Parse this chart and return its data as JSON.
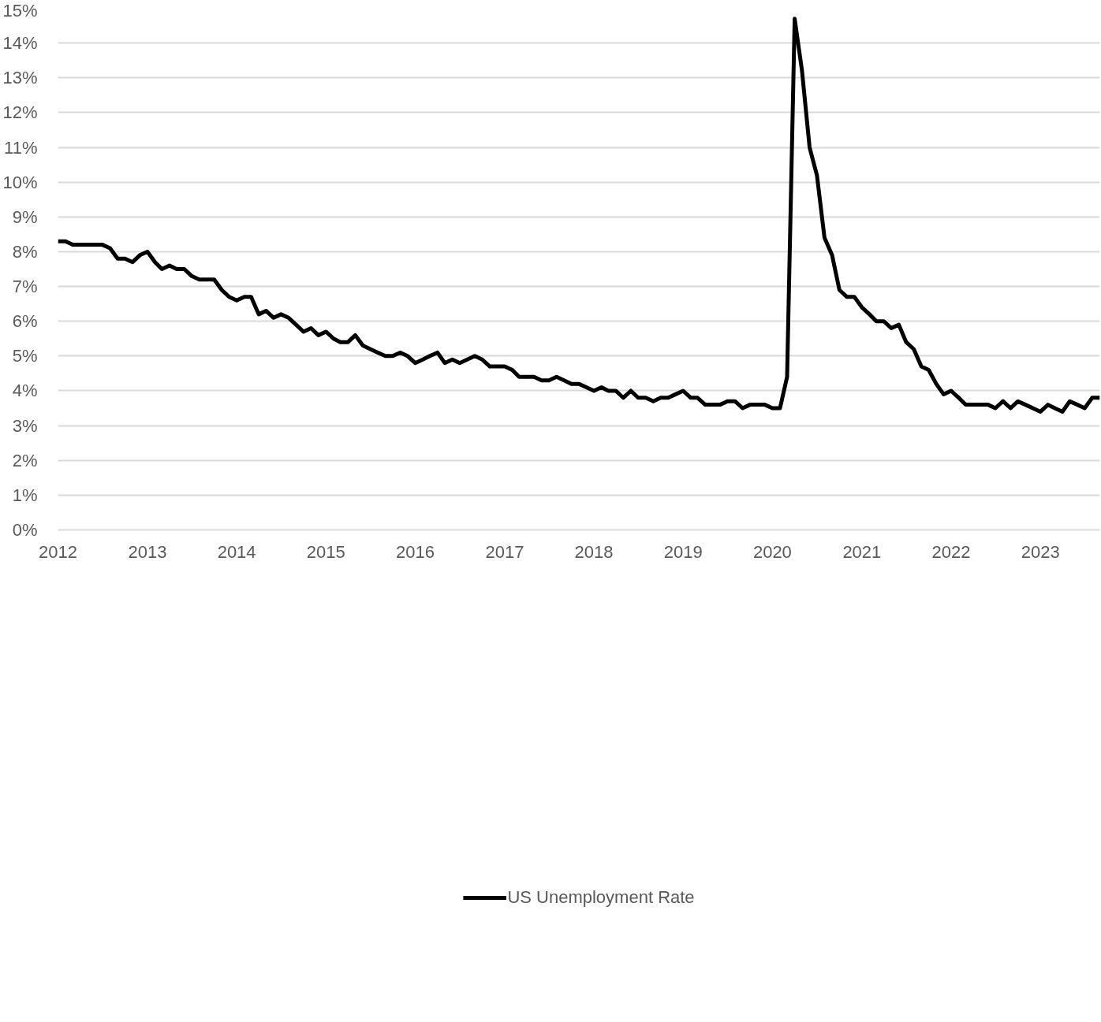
{
  "chart_data": {
    "type": "line",
    "x": [
      "2012-01",
      "2012-02",
      "2012-03",
      "2012-04",
      "2012-05",
      "2012-06",
      "2012-07",
      "2012-08",
      "2012-09",
      "2012-10",
      "2012-11",
      "2012-12",
      "2013-01",
      "2013-02",
      "2013-03",
      "2013-04",
      "2013-05",
      "2013-06",
      "2013-07",
      "2013-08",
      "2013-09",
      "2013-10",
      "2013-11",
      "2013-12",
      "2014-01",
      "2014-02",
      "2014-03",
      "2014-04",
      "2014-05",
      "2014-06",
      "2014-07",
      "2014-08",
      "2014-09",
      "2014-10",
      "2014-11",
      "2014-12",
      "2015-01",
      "2015-02",
      "2015-03",
      "2015-04",
      "2015-05",
      "2015-06",
      "2015-07",
      "2015-08",
      "2015-09",
      "2015-10",
      "2015-11",
      "2015-12",
      "2016-01",
      "2016-02",
      "2016-03",
      "2016-04",
      "2016-05",
      "2016-06",
      "2016-07",
      "2016-08",
      "2016-09",
      "2016-10",
      "2016-11",
      "2016-12",
      "2017-01",
      "2017-02",
      "2017-03",
      "2017-04",
      "2017-05",
      "2017-06",
      "2017-07",
      "2017-08",
      "2017-09",
      "2017-10",
      "2017-11",
      "2017-12",
      "2018-01",
      "2018-02",
      "2018-03",
      "2018-04",
      "2018-05",
      "2018-06",
      "2018-07",
      "2018-08",
      "2018-09",
      "2018-10",
      "2018-11",
      "2018-12",
      "2019-01",
      "2019-02",
      "2019-03",
      "2019-04",
      "2019-05",
      "2019-06",
      "2019-07",
      "2019-08",
      "2019-09",
      "2019-10",
      "2019-11",
      "2019-12",
      "2020-01",
      "2020-02",
      "2020-03",
      "2020-04",
      "2020-05",
      "2020-06",
      "2020-07",
      "2020-08",
      "2020-09",
      "2020-10",
      "2020-11",
      "2020-12",
      "2021-01",
      "2021-02",
      "2021-03",
      "2021-04",
      "2021-05",
      "2021-06",
      "2021-07",
      "2021-08",
      "2021-09",
      "2021-10",
      "2021-11",
      "2021-12",
      "2022-01",
      "2022-02",
      "2022-03",
      "2022-04",
      "2022-05",
      "2022-06",
      "2022-07",
      "2022-08",
      "2022-09",
      "2022-10",
      "2022-11",
      "2022-12",
      "2023-01",
      "2023-02",
      "2023-03",
      "2023-04",
      "2023-05",
      "2023-06",
      "2023-07",
      "2023-08",
      "2023-09"
    ],
    "series": [
      {
        "name": "US Unemployment Rate",
        "color": "#000000",
        "values": [
          8.3,
          8.3,
          8.2,
          8.2,
          8.2,
          8.2,
          8.2,
          8.1,
          7.8,
          7.8,
          7.7,
          7.9,
          8.0,
          7.7,
          7.5,
          7.6,
          7.5,
          7.5,
          7.3,
          7.2,
          7.2,
          7.2,
          6.9,
          6.7,
          6.6,
          6.7,
          6.7,
          6.2,
          6.3,
          6.1,
          6.2,
          6.1,
          5.9,
          5.7,
          5.8,
          5.6,
          5.7,
          5.5,
          5.4,
          5.4,
          5.6,
          5.3,
          5.2,
          5.1,
          5.0,
          5.0,
          5.1,
          5.0,
          4.8,
          4.9,
          5.0,
          5.1,
          4.8,
          4.9,
          4.8,
          4.9,
          5.0,
          4.9,
          4.7,
          4.7,
          4.7,
          4.6,
          4.4,
          4.4,
          4.4,
          4.3,
          4.3,
          4.4,
          4.3,
          4.2,
          4.2,
          4.1,
          4.0,
          4.1,
          4.0,
          4.0,
          3.8,
          4.0,
          3.8,
          3.8,
          3.7,
          3.8,
          3.8,
          3.9,
          4.0,
          3.8,
          3.8,
          3.6,
          3.6,
          3.6,
          3.7,
          3.7,
          3.5,
          3.6,
          3.6,
          3.6,
          3.5,
          3.5,
          4.4,
          14.7,
          13.2,
          11.0,
          10.2,
          8.4,
          7.9,
          6.9,
          6.7,
          6.7,
          6.4,
          6.2,
          6.0,
          6.0,
          5.8,
          5.9,
          5.4,
          5.2,
          4.7,
          4.6,
          4.2,
          3.9,
          4.0,
          3.8,
          3.6,
          3.6,
          3.6,
          3.6,
          3.5,
          3.7,
          3.5,
          3.7,
          3.6,
          3.5,
          3.4,
          3.6,
          3.5,
          3.4,
          3.7,
          3.6,
          3.5,
          3.8,
          3.8
        ]
      }
    ],
    "xlim": [
      "2012-01",
      "2023-09"
    ],
    "xticks": [
      "2012",
      "2013",
      "2014",
      "2015",
      "2016",
      "2017",
      "2018",
      "2019",
      "2020",
      "2021",
      "2022",
      "2023"
    ],
    "ylim": [
      0,
      15
    ],
    "yticks": [
      {
        "value": 0,
        "label": "0%"
      },
      {
        "value": 1,
        "label": "1%"
      },
      {
        "value": 2,
        "label": "2%"
      },
      {
        "value": 3,
        "label": "3%"
      },
      {
        "value": 4,
        "label": "4%"
      },
      {
        "value": 5,
        "label": "5%"
      },
      {
        "value": 6,
        "label": "6%"
      },
      {
        "value": 7,
        "label": "7%"
      },
      {
        "value": 8,
        "label": "8%"
      },
      {
        "value": 9,
        "label": "9%"
      },
      {
        "value": 10,
        "label": "10%"
      },
      {
        "value": 11,
        "label": "11%"
      },
      {
        "value": 12,
        "label": "12%"
      },
      {
        "value": 13,
        "label": "13%"
      },
      {
        "value": 14,
        "label": "14%"
      },
      {
        "value": 15,
        "label": "15%"
      }
    ],
    "grid": "y",
    "legend": "bottom",
    "marker": "none",
    "line_style": "solid"
  }
}
